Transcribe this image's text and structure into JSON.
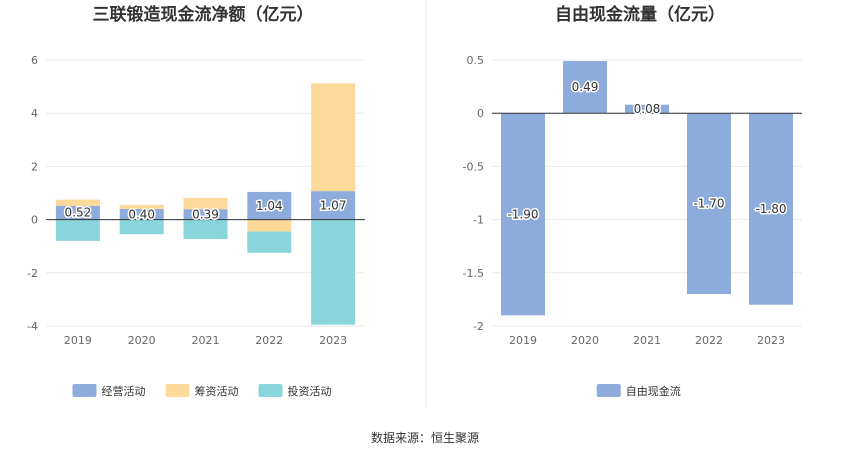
{
  "source": "数据来源：恒生聚源",
  "chart_data": [
    {
      "type": "bar",
      "stacked": true,
      "title": "三联锻造现金流净额（亿元）",
      "categories": [
        "2019",
        "2020",
        "2021",
        "2022",
        "2023"
      ],
      "ylim": [
        -4,
        6
      ],
      "yticks": [
        "6",
        "4",
        "2",
        "0",
        "-2",
        "-4"
      ],
      "ytick_values": [
        6,
        4,
        2,
        0,
        -2,
        -4
      ],
      "grid": true,
      "legend_position": "bottom",
      "series": [
        {
          "name": "经营活动",
          "color": "#8eacdb",
          "values": [
            0.52,
            0.4,
            0.39,
            1.04,
            1.07
          ],
          "labels": [
            "0.52",
            "0.40",
            "0.39",
            "1.04",
            "1.07"
          ]
        },
        {
          "name": "筹资活动",
          "color": "#fdd99a",
          "values": [
            0.23,
            0.15,
            0.43,
            -0.45,
            4.05
          ]
        },
        {
          "name": "投资活动",
          "color": "#88d6db",
          "values": [
            -0.8,
            -0.55,
            -0.73,
            -0.8,
            -3.95
          ]
        }
      ]
    },
    {
      "type": "bar",
      "title": "自由现金流量（亿元）",
      "categories": [
        "2019",
        "2020",
        "2021",
        "2022",
        "2023"
      ],
      "ylim": [
        -2,
        0.5
      ],
      "yticks": [
        "0.5",
        "0",
        "-0.5",
        "-1",
        "-1.5",
        "-2"
      ],
      "ytick_values": [
        0.5,
        0,
        -0.5,
        -1,
        -1.5,
        -2
      ],
      "grid": true,
      "legend_position": "bottom",
      "series": [
        {
          "name": "自由现金流",
          "color": "#8eacdb",
          "values": [
            -1.9,
            0.49,
            0.08,
            -1.7,
            -1.8
          ],
          "labels": [
            "-1.90",
            "0.49",
            "0.08",
            "-1.70",
            "-1.80"
          ]
        }
      ]
    }
  ]
}
